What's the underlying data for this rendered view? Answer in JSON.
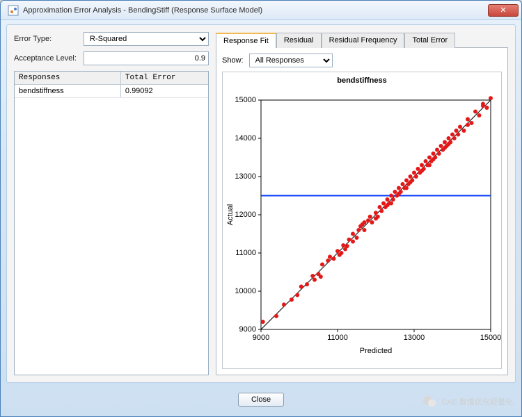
{
  "window": {
    "title": "Approximation Error Analysis - BendingStiff (Response Surface Model)"
  },
  "left": {
    "error_type_label": "Error Type:",
    "error_type_value": "R-Squared",
    "acceptance_label": "Acceptance Level:",
    "acceptance_value": "0.9",
    "table": {
      "col1_header": "Responses",
      "col2_header": "Total Error",
      "rows": [
        {
          "response": "bendstiffness",
          "total_error": "0.99092"
        }
      ]
    }
  },
  "tabs": {
    "items": [
      {
        "label": "Response Fit",
        "active": true
      },
      {
        "label": "Residual",
        "active": false
      },
      {
        "label": "Residual Frequency",
        "active": false
      },
      {
        "label": "Total Error",
        "active": false
      }
    ]
  },
  "show": {
    "label": "Show:",
    "value": "All Responses"
  },
  "chart": {
    "title": "bendstiffness",
    "type": "scatter",
    "xlabel": "Predicted",
    "ylabel": "Actual",
    "xlim": [
      9000,
      15000
    ],
    "ylim": [
      9000,
      15000
    ],
    "x_ticks": [
      9000,
      11000,
      13000,
      15000
    ],
    "y_ticks": [
      9000,
      10000,
      11000,
      12000,
      13000,
      14000,
      15000
    ],
    "tick_fontsize": 10,
    "label_fontsize": 11,
    "background_color": "#ffffff",
    "border_color": "#000000",
    "marker_color": "#e31919",
    "marker_size": 3,
    "diag_line_color": "#000000",
    "diag_line_width": 1,
    "hline_value": 12500,
    "hline_color": "#0a3cff",
    "hline_width": 2,
    "points": [
      [
        9050,
        9200
      ],
      [
        9400,
        9350
      ],
      [
        9600,
        9650
      ],
      [
        9800,
        9780
      ],
      [
        9950,
        9900
      ],
      [
        10050,
        10120
      ],
      [
        10200,
        10180
      ],
      [
        10350,
        10400
      ],
      [
        10500,
        10450
      ],
      [
        10600,
        10700
      ],
      [
        10560,
        10380
      ],
      [
        10750,
        10800
      ],
      [
        10900,
        10850
      ],
      [
        11000,
        11050
      ],
      [
        11050,
        10950
      ],
      [
        11150,
        11200
      ],
      [
        11250,
        11180
      ],
      [
        11300,
        11350
      ],
      [
        11400,
        11500
      ],
      [
        11500,
        11400
      ],
      [
        11550,
        11600
      ],
      [
        11650,
        11750
      ],
      [
        11700,
        11600
      ],
      [
        11800,
        11850
      ],
      [
        11850,
        11950
      ],
      [
        11900,
        11800
      ],
      [
        12000,
        12050
      ],
      [
        12050,
        11950
      ],
      [
        12100,
        12200
      ],
      [
        12150,
        12100
      ],
      [
        12200,
        12300
      ],
      [
        12250,
        12200
      ],
      [
        12300,
        12400
      ],
      [
        12350,
        12300
      ],
      [
        12400,
        12500
      ],
      [
        12450,
        12400
      ],
      [
        12500,
        12600
      ],
      [
        12550,
        12500
      ],
      [
        12600,
        12700
      ],
      [
        12650,
        12600
      ],
      [
        12700,
        12800
      ],
      [
        12750,
        12700
      ],
      [
        12800,
        12900
      ],
      [
        12850,
        12800
      ],
      [
        12900,
        13000
      ],
      [
        12950,
        12900
      ],
      [
        13000,
        13100
      ],
      [
        13050,
        13000
      ],
      [
        13100,
        13200
      ],
      [
        13150,
        13100
      ],
      [
        13200,
        13300
      ],
      [
        13250,
        13200
      ],
      [
        13300,
        13400
      ],
      [
        13350,
        13300
      ],
      [
        13400,
        13500
      ],
      [
        13450,
        13400
      ],
      [
        13500,
        13600
      ],
      [
        13550,
        13500
      ],
      [
        13600,
        13700
      ],
      [
        13650,
        13600
      ],
      [
        13700,
        13800
      ],
      [
        13750,
        13700
      ],
      [
        13800,
        13900
      ],
      [
        13850,
        13800
      ],
      [
        13900,
        14000
      ],
      [
        13950,
        13900
      ],
      [
        14000,
        14100
      ],
      [
        14050,
        14000
      ],
      [
        14100,
        14200
      ],
      [
        14150,
        14100
      ],
      [
        14200,
        14300
      ],
      [
        14300,
        14200
      ],
      [
        14400,
        14500
      ],
      [
        14500,
        14400
      ],
      [
        14600,
        14700
      ],
      [
        14700,
        14600
      ],
      [
        14800,
        14900
      ],
      [
        14900,
        14800
      ],
      [
        15000,
        15050
      ],
      [
        11100,
        11000
      ],
      [
        11400,
        11300
      ],
      [
        11700,
        11800
      ],
      [
        12000,
        11900
      ],
      [
        12300,
        12250
      ],
      [
        12600,
        12550
      ],
      [
        12900,
        12850
      ],
      [
        13200,
        13150
      ],
      [
        13500,
        13450
      ],
      [
        13800,
        13750
      ],
      [
        10400,
        10300
      ],
      [
        10800,
        10900
      ],
      [
        11200,
        11100
      ],
      [
        11600,
        11700
      ],
      [
        12400,
        12300
      ],
      [
        12800,
        12700
      ],
      [
        13400,
        13300
      ],
      [
        13900,
        13850
      ],
      [
        14400,
        14350
      ],
      [
        14800,
        14850
      ]
    ]
  },
  "buttons": {
    "close": "Close"
  },
  "watermark": {
    "text": "CAE 数值优化轻量化"
  }
}
